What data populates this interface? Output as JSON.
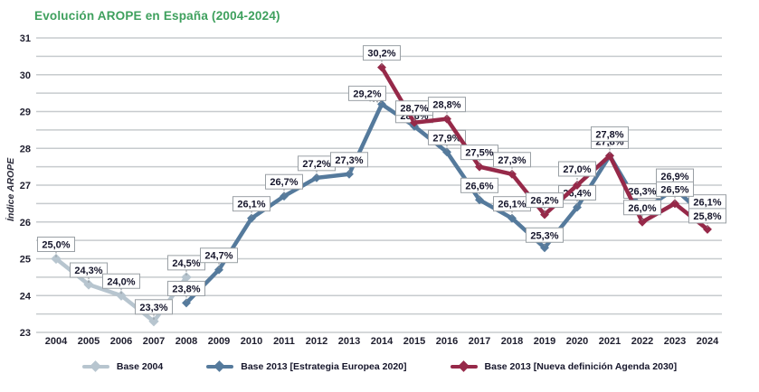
{
  "chart_data": {
    "type": "line",
    "title": "Evolución AROPE en España (2004-2024)",
    "title_color": "#3EA05D",
    "ylabel": "Índice AROPE",
    "x": [
      2004,
      2005,
      2006,
      2007,
      2008,
      2009,
      2010,
      2011,
      2012,
      2013,
      2014,
      2015,
      2016,
      2017,
      2018,
      2019,
      2020,
      2021,
      2022,
      2023,
      2024
    ],
    "ylim": [
      23,
      31
    ],
    "grid_step": 0.5,
    "y_ticks": [
      23,
      24,
      25,
      26,
      27,
      28,
      29,
      30,
      31
    ],
    "grid_on": true,
    "grid_color": "#c7cbce",
    "legend_position": "bottom",
    "label_format": "comma-decimal-percent",
    "label_box": {
      "bg": "#ffffff",
      "border": "#9aa0a5",
      "text_color": "#14142a"
    },
    "axis_text_color": "#1e1e2e",
    "series": [
      {
        "name": "Base 2004",
        "color": "#b7c5cf",
        "points": [
          {
            "x": 2004,
            "v": 25.0
          },
          {
            "x": 2005,
            "v": 24.3
          },
          {
            "x": 2006,
            "v": 24.0
          },
          {
            "x": 2007,
            "v": 23.3
          },
          {
            "x": 2008,
            "v": 24.5
          }
        ]
      },
      {
        "name": "Base 2013 [Estrategia Europea 2020]",
        "color": "#557a9c",
        "points": [
          {
            "x": 2008,
            "v": 23.8
          },
          {
            "x": 2009,
            "v": 24.7
          },
          {
            "x": 2010,
            "v": 26.1
          },
          {
            "x": 2011,
            "v": 26.7
          },
          {
            "x": 2012,
            "v": 27.2
          },
          {
            "x": 2013,
            "v": 27.3
          },
          {
            "x": 2014,
            "v": 29.2,
            "ldx": -16,
            "ldy": 4
          },
          {
            "x": 2015,
            "v": 28.6,
            "ldy": 4
          },
          {
            "x": 2016,
            "v": 27.9
          },
          {
            "x": 2017,
            "v": 26.6
          },
          {
            "x": 2018,
            "v": 26.1
          },
          {
            "x": 2019,
            "v": 25.3,
            "ldy": 6
          },
          {
            "x": 2020,
            "v": 26.4
          },
          {
            "x": 2021,
            "v": 27.8
          },
          {
            "x": 2022,
            "v": 26.3,
            "ldy": 14
          },
          {
            "x": 2023,
            "v": 26.9,
            "ldy": 6
          },
          {
            "x": 2024,
            "v": 26.1,
            "ldy": 10
          }
        ]
      },
      {
        "name": "Base 2013 [Nueva definición Agenda 2030]",
        "color": "#962949",
        "points": [
          {
            "x": 2014,
            "v": 30.2
          },
          {
            "x": 2015,
            "v": 28.7
          },
          {
            "x": 2016,
            "v": 28.8
          },
          {
            "x": 2017,
            "v": 27.5
          },
          {
            "x": 2018,
            "v": 27.3
          },
          {
            "x": 2019,
            "v": 26.2
          },
          {
            "x": 2020,
            "v": 27.0,
            "ldy": 10
          },
          {
            "x": 2021,
            "v": 27.8,
            "ldy": 16
          },
          {
            "x": 2022,
            "v": 26.0
          },
          {
            "x": 2023,
            "v": 26.5
          },
          {
            "x": 2024,
            "v": 25.8,
            "ldy": 7
          }
        ]
      }
    ]
  }
}
